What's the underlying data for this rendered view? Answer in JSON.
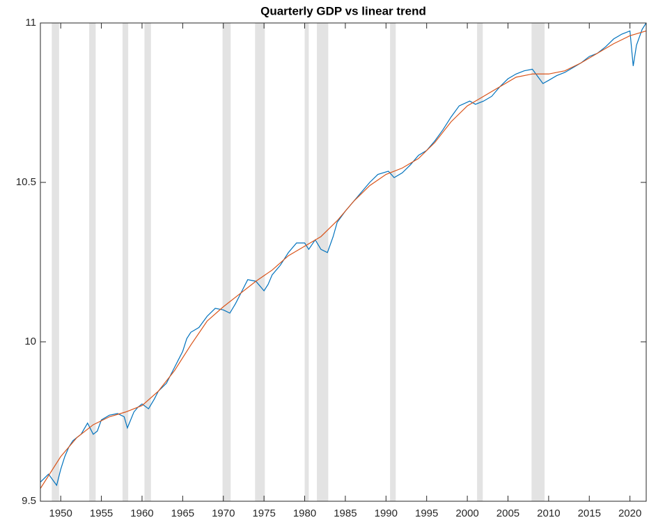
{
  "chart_data": {
    "type": "line",
    "title": "Quarterly GDP vs linear trend",
    "xlim": [
      1947.5,
      2022
    ],
    "ylim": [
      9.5,
      11
    ],
    "xticks": [
      1950,
      1955,
      1960,
      1965,
      1970,
      1975,
      1980,
      1985,
      1990,
      1995,
      2000,
      2005,
      2010,
      2015,
      2020
    ],
    "yticks": [
      9.5,
      10,
      10.5,
      11
    ],
    "recessions": [
      [
        1948.9,
        1949.8
      ],
      [
        1953.5,
        1954.3
      ],
      [
        1957.6,
        1958.3
      ],
      [
        1960.3,
        1961.1
      ],
      [
        1969.9,
        1970.9
      ],
      [
        1973.9,
        1975.1
      ],
      [
        1980.0,
        1980.5
      ],
      [
        1981.5,
        1982.9
      ],
      [
        1990.5,
        1991.2
      ],
      [
        2001.2,
        2001.9
      ],
      [
        2007.9,
        2009.5
      ]
    ],
    "recession_color": "#e3e3e3",
    "series": [
      {
        "color": "#0072bd",
        "x": [
          1947.5,
          1948.5,
          1949.5,
          1950,
          1950.5,
          1951,
          1951.5,
          1952,
          1952.5,
          1953.3,
          1954,
          1954.5,
          1955,
          1956,
          1957,
          1957.8,
          1958.2,
          1959,
          1959.5,
          1960,
          1960.8,
          1961.5,
          1962,
          1963,
          1964,
          1965,
          1965.5,
          1966,
          1967,
          1968,
          1969,
          1970,
          1970.8,
          1971.5,
          1972,
          1973,
          1974,
          1975,
          1975.5,
          1976,
          1977,
          1978,
          1979,
          1980,
          1980.5,
          1981.3,
          1982,
          1982.8,
          1983.5,
          1984,
          1985,
          1986,
          1987,
          1988,
          1989,
          1990.3,
          1991,
          1992,
          1993,
          1994,
          1995,
          1996,
          1997,
          1998,
          1999,
          2000.3,
          2001,
          2002,
          2003,
          2004,
          2005,
          2006,
          2007,
          2008,
          2009.3,
          2010,
          2011,
          2012,
          2013,
          2014,
          2015,
          2016,
          2017,
          2018,
          2019,
          2020,
          2020.4,
          2020.8,
          2021.5,
          2022
        ],
        "values": [
          9.56,
          9.585,
          9.55,
          9.6,
          9.64,
          9.67,
          9.69,
          9.7,
          9.71,
          9.745,
          9.71,
          9.72,
          9.755,
          9.77,
          9.775,
          9.765,
          9.73,
          9.78,
          9.795,
          9.805,
          9.79,
          9.82,
          9.845,
          9.87,
          9.92,
          9.97,
          10.01,
          10.03,
          10.045,
          10.08,
          10.105,
          10.1,
          10.09,
          10.12,
          10.145,
          10.195,
          10.19,
          10.16,
          10.18,
          10.21,
          10.24,
          10.28,
          10.31,
          10.31,
          10.29,
          10.32,
          10.29,
          10.28,
          10.33,
          10.375,
          10.41,
          10.44,
          10.47,
          10.5,
          10.525,
          10.535,
          10.515,
          10.53,
          10.555,
          10.585,
          10.6,
          10.63,
          10.665,
          10.705,
          10.74,
          10.755,
          10.745,
          10.755,
          10.77,
          10.8,
          10.825,
          10.84,
          10.85,
          10.855,
          10.81,
          10.82,
          10.835,
          10.845,
          10.86,
          10.875,
          10.895,
          10.905,
          10.925,
          10.95,
          10.965,
          10.975,
          10.865,
          10.93,
          10.98,
          11.0
        ]
      },
      {
        "color": "#d95319",
        "x": [
          1947.5,
          1950,
          1952,
          1954,
          1956,
          1958,
          1960,
          1962,
          1964,
          1966,
          1968,
          1970,
          1972,
          1974,
          1976,
          1978,
          1980,
          1982,
          1984,
          1986,
          1988,
          1990,
          1992,
          1994,
          1996,
          1998,
          2000,
          2002,
          2004,
          2006,
          2008,
          2010,
          2012,
          2014,
          2016,
          2018,
          2020,
          2022
        ],
        "values": [
          9.54,
          9.64,
          9.7,
          9.74,
          9.765,
          9.78,
          9.8,
          9.845,
          9.91,
          9.99,
          10.065,
          10.11,
          10.15,
          10.19,
          10.225,
          10.27,
          10.3,
          10.33,
          10.38,
          10.44,
          10.49,
          10.525,
          10.545,
          10.575,
          10.625,
          10.69,
          10.74,
          10.77,
          10.8,
          10.83,
          10.84,
          10.84,
          10.85,
          10.875,
          10.905,
          10.935,
          10.96,
          10.975
        ]
      }
    ]
  }
}
